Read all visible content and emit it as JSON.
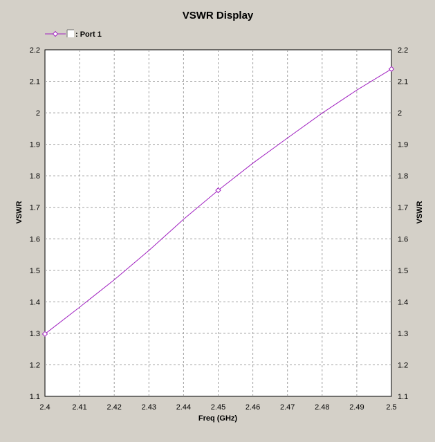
{
  "chart_data": {
    "type": "line",
    "title": "VSWR Display",
    "xlabel": "Freq (GHz)",
    "ylabel": "VSWR",
    "ylabel_right": "VSWR",
    "xlim": [
      2.4,
      2.5
    ],
    "ylim": [
      1.1,
      2.2
    ],
    "x_ticks": [
      "2.4",
      "2.41",
      "2.42",
      "2.43",
      "2.44",
      "2.45",
      "2.46",
      "2.47",
      "2.48",
      "2.49",
      "2.5"
    ],
    "y_ticks": [
      "1.1",
      "1.2",
      "1.3",
      "1.4",
      "1.5",
      "1.6",
      "1.7",
      "1.8",
      "1.9",
      "2",
      "2.1",
      "2.2"
    ],
    "grid": true,
    "legend_position": "top-left",
    "series": [
      {
        "name": ": Port 1",
        "color": "#a020c0",
        "x": [
          2.4,
          2.41,
          2.42,
          2.43,
          2.44,
          2.45,
          2.46,
          2.47,
          2.48,
          2.49,
          2.5
        ],
        "y": [
          1.298,
          1.383,
          1.47,
          1.563,
          1.662,
          1.754,
          1.84,
          1.92,
          1.999,
          2.072,
          2.139
        ],
        "markers_at": [
          2.4,
          2.45,
          2.5
        ]
      }
    ]
  }
}
